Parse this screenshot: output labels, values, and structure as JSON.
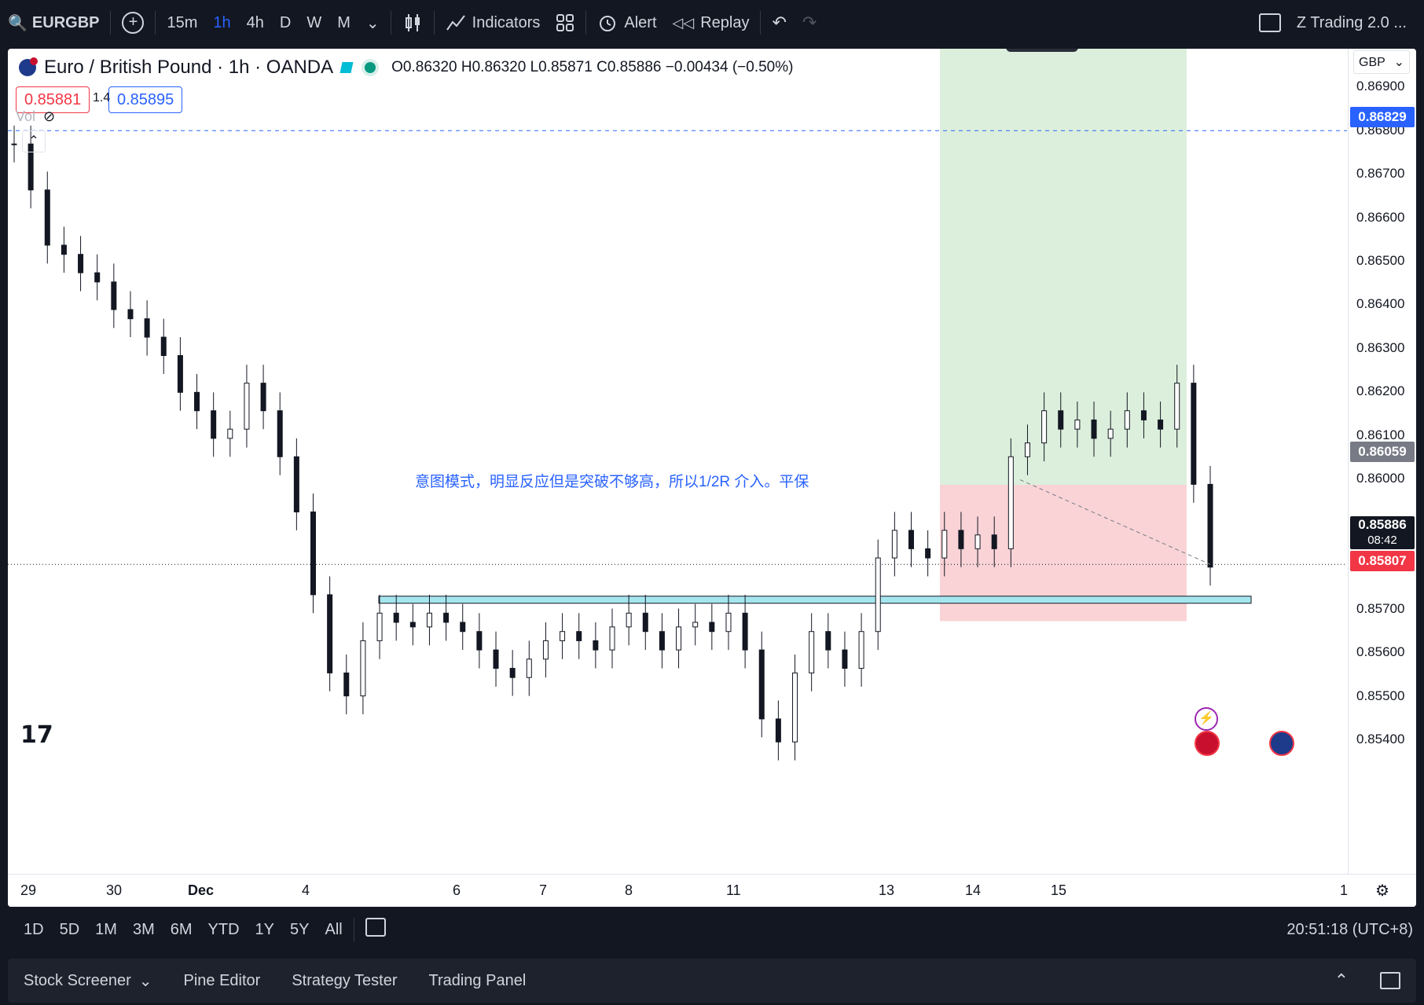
{
  "topbar": {
    "symbol": "EURGBP",
    "intervals": [
      "15m",
      "1h",
      "4h",
      "D",
      "W",
      "M"
    ],
    "active_interval": "1h",
    "indicators_label": "Indicators",
    "alert_label": "Alert",
    "replay_label": "Replay",
    "layout_name": "Z Trading 2.0 ..."
  },
  "legend": {
    "title": "Euro / British Pound · 1h · OANDA",
    "ohlc": "O0.86320 H0.86320 L0.85871 C0.85886 −0.00434 (−0.50%)",
    "sell_price": "0.85881",
    "spread": "1.4",
    "buy_price": "0.85895",
    "vol_label": "Vol"
  },
  "price_scale": {
    "currency": "GBP",
    "ticks": [
      "0.86900",
      "0.86800",
      "0.86700",
      "0.86600",
      "0.86500",
      "0.86400",
      "0.86300",
      "0.86200",
      "0.86100",
      "0.86000",
      "0.85700",
      "0.85600",
      "0.85500",
      "0.85400"
    ],
    "alert_price": "0.86829",
    "target_price": "0.86059",
    "last_price": "0.85886",
    "countdown": "08:42",
    "stop_price": "0.85807"
  },
  "time_scale": {
    "labels": [
      "29",
      "30",
      "Dec",
      "4",
      "6",
      "7",
      "8",
      "11",
      "13",
      "14",
      "15",
      "1"
    ]
  },
  "annotation": {
    "text": "意图模式，明显反应但是突破不够高，所以1/2R 介入。平保"
  },
  "bottombar": {
    "ranges": [
      "1D",
      "5D",
      "1M",
      "3M",
      "6M",
      "YTD",
      "1Y",
      "5Y",
      "All"
    ],
    "clock": "20:51:18 (UTC+8)"
  },
  "panels": [
    "Stock Screener",
    "Pine Editor",
    "Strategy Tester",
    "Trading Panel"
  ],
  "colors": {
    "accent": "#2962ff",
    "profit_zone": "#dcefdc",
    "loss_zone": "#f9d3d6",
    "zone_line": "#a5e6ee",
    "sell": "#f23645",
    "candle": "#131722"
  },
  "chart_data": {
    "type": "candlestick",
    "symbol": "EURGBP",
    "interval": "1h",
    "ylim": [
      0.8535,
      0.8699
    ],
    "x": [
      "29",
      "30",
      "Dec",
      "4",
      "6",
      "7",
      "8",
      "11",
      "13",
      "14",
      "15"
    ],
    "close_path": [
      0.868,
      0.867,
      0.8658,
      0.8656,
      0.8652,
      0.865,
      0.8644,
      0.8642,
      0.8638,
      0.8634,
      0.8626,
      0.8622,
      0.8616,
      0.8618,
      0.8628,
      0.8622,
      0.8612,
      0.86,
      0.8582,
      0.8565,
      0.856,
      0.8572,
      0.8578,
      0.8576,
      0.8575,
      0.8578,
      0.8576,
      0.8574,
      0.857,
      0.8566,
      0.8564,
      0.8568,
      0.8572,
      0.8574,
      0.8572,
      0.857,
      0.8575,
      0.8578,
      0.8574,
      0.857,
      0.8575,
      0.8576,
      0.8574,
      0.8578,
      0.857,
      0.8555,
      0.855,
      0.8565,
      0.8574,
      0.857,
      0.8566,
      0.8574,
      0.859,
      0.8596,
      0.8592,
      0.859,
      0.8596,
      0.8592,
      0.8595,
      0.8592,
      0.8612,
      0.8615,
      0.8622,
      0.8618,
      0.862,
      0.8616,
      0.8618,
      0.8622,
      0.862,
      0.8618,
      0.8628,
      0.8606,
      0.8588
    ],
    "zones": {
      "target": 0.86059,
      "stop": 0.85807,
      "alert": 0.86829,
      "last": 0.85886,
      "support": 0.8581
    }
  }
}
